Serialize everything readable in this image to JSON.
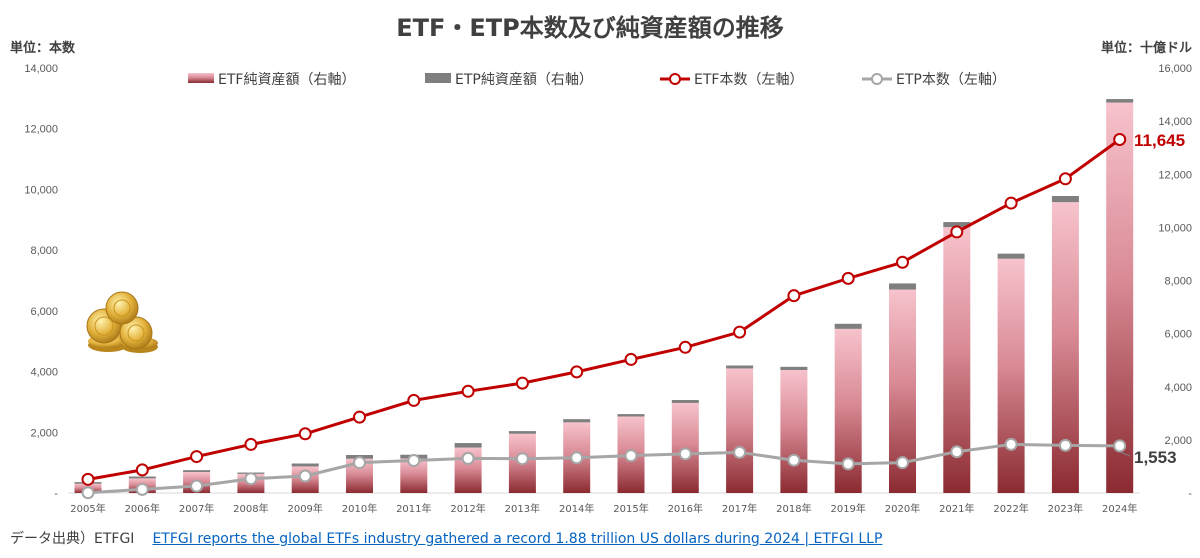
{
  "chart_data": {
    "type": "bar+line",
    "title": "ETF・ETP本数及び純資産額の推移",
    "left_axis_unit": "単位：本数",
    "right_axis_unit": "単位：十億ドル",
    "left_ylim": [
      0,
      14000
    ],
    "left_ticks": [
      "-",
      "2,000",
      "4,000",
      "6,000",
      "8,000",
      "10,000",
      "12,000",
      "14,000"
    ],
    "right_ylim": [
      0,
      16000
    ],
    "right_ticks": [
      "-",
      "2,000",
      "4,000",
      "6,000",
      "8,000",
      "10,000",
      "12,000",
      "14,000",
      "16,000"
    ],
    "categories": [
      "2005年",
      "2006年",
      "2007年",
      "2008年",
      "2009年",
      "2010年",
      "2011年",
      "2012年",
      "2013年",
      "2014年",
      "2015年",
      "2016年",
      "2017年",
      "2018年",
      "2019年",
      "2020年",
      "2021年",
      "2022年",
      "2023年",
      "2024年"
    ],
    "series": [
      {
        "name": "ETF純資産額（右軸）",
        "kind": "bar",
        "axis": "right",
        "values": [
          350,
          550,
          790,
          720,
          1000,
          1290,
          1300,
          1710,
          2230,
          2660,
          2880,
          3390,
          4690,
          4630,
          6180,
          7660,
          10010,
          8820,
          10950,
          14700
        ]
      },
      {
        "name": "ETP純資産額（右軸）",
        "kind": "bar",
        "axis": "right",
        "values": [
          60,
          70,
          70,
          50,
          110,
          140,
          140,
          170,
          100,
          120,
          90,
          110,
          110,
          120,
          190,
          230,
          190,
          190,
          230,
          130
        ]
      },
      {
        "name": "ETF本数（左軸）",
        "kind": "line",
        "axis": "left",
        "values": [
          450,
          760,
          1200,
          1600,
          1950,
          2500,
          3050,
          3350,
          3620,
          3990,
          4400,
          4800,
          5300,
          6500,
          7070,
          7600,
          8600,
          9550,
          10350,
          11645
        ]
      },
      {
        "name": "ETP本数（左軸）",
        "kind": "line",
        "axis": "left",
        "values": [
          10,
          120,
          230,
          470,
          560,
          1000,
          1070,
          1140,
          1130,
          1160,
          1230,
          1290,
          1340,
          1080,
          960,
          1000,
          1360,
          1600,
          1570,
          1553
        ]
      }
    ],
    "data_labels": {
      "etf_last": "11,645",
      "etp_last": "1,553"
    },
    "colors": {
      "etf_bar_top": "#f7c3cc",
      "etf_bar_bottom": "#8b2a30",
      "etp_bar": "#7f7f7f",
      "etf_line": "#c00000",
      "etp_line": "#a6a6a6"
    }
  },
  "footer": {
    "source": "データ出典）ETFGI",
    "link_text": "ETFGI reports the global ETFs industry gathered a record 1.88 trillion US dollars during 2024 | ETFGI LLP"
  },
  "decoration": {
    "image": "gold-coins-icon"
  }
}
